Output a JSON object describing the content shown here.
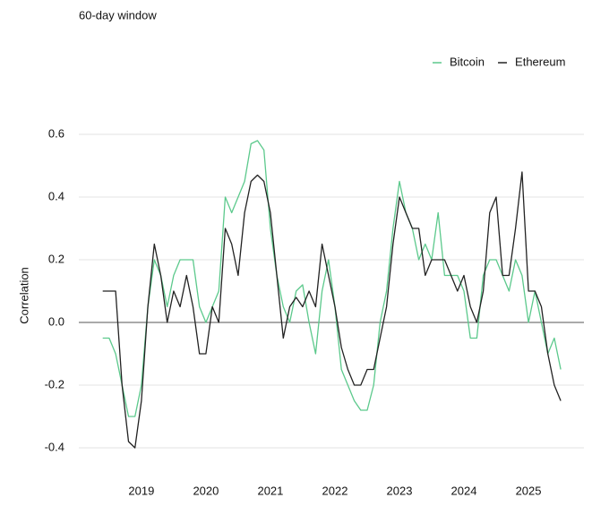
{
  "chart_data": {
    "type": "line",
    "subtitle": "60-day window",
    "y_label": "Correlation",
    "legend": "top-right",
    "grid": true,
    "x": [
      2018.4,
      2018.5,
      2018.6,
      2018.7,
      2018.8,
      2018.9,
      2019.0,
      2019.1,
      2019.2,
      2019.3,
      2019.4,
      2019.5,
      2019.6,
      2019.7,
      2019.8,
      2019.9,
      2020.0,
      2020.1,
      2020.2,
      2020.3,
      2020.4,
      2020.5,
      2020.6,
      2020.7,
      2020.8,
      2020.9,
      2021.0,
      2021.1,
      2021.2,
      2021.3,
      2021.4,
      2021.5,
      2021.6,
      2021.7,
      2021.8,
      2021.9,
      2022.0,
      2022.1,
      2022.2,
      2022.3,
      2022.4,
      2022.5,
      2022.6,
      2022.7,
      2022.8,
      2022.9,
      2023.0,
      2023.1,
      2023.2,
      2023.3,
      2023.4,
      2023.5,
      2023.6,
      2023.7,
      2023.8,
      2023.9,
      2024.0,
      2024.1,
      2024.2,
      2024.3,
      2024.4,
      2024.5,
      2024.6,
      2024.7,
      2024.8,
      2024.9,
      2025.0,
      2025.1,
      2025.2,
      2025.3,
      2025.4,
      2025.5
    ],
    "series": [
      {
        "name": "Bitcoin",
        "color": "#5cc98c",
        "values": [
          -0.05,
          -0.05,
          -0.1,
          -0.2,
          -0.3,
          -0.3,
          -0.2,
          0.05,
          0.2,
          0.15,
          0.05,
          0.15,
          0.2,
          0.2,
          0.2,
          0.05,
          0,
          0.05,
          0.1,
          0.4,
          0.35,
          0.4,
          0.45,
          0.57,
          0.58,
          0.55,
          0.3,
          0.15,
          0.05,
          0,
          0.1,
          0.12,
          0,
          -0.1,
          0.1,
          0.2,
          0.05,
          -0.15,
          -0.2,
          -0.25,
          -0.28,
          -0.28,
          -0.2,
          0,
          0.1,
          0.3,
          0.45,
          0.35,
          0.3,
          0.2,
          0.25,
          0.2,
          0.35,
          0.15,
          0.15,
          0.15,
          0.1,
          -0.05,
          -0.05,
          0.15,
          0.2,
          0.2,
          0.15,
          0.1,
          0.2,
          0.15,
          0,
          0.1,
          0,
          -0.1,
          -0.05,
          -0.15
        ]
      },
      {
        "name": "Ethereum",
        "color": "#222222",
        "values": [
          0.1,
          0.1,
          0.1,
          -0.2,
          -0.38,
          -0.4,
          -0.25,
          0.05,
          0.25,
          0.15,
          0,
          0.1,
          0.05,
          0.15,
          0.05,
          -0.1,
          -0.1,
          0.05,
          0,
          0.3,
          0.25,
          0.15,
          0.35,
          0.45,
          0.47,
          0.45,
          0.35,
          0.15,
          -0.05,
          0.05,
          0.08,
          0.05,
          0.1,
          0.05,
          0.25,
          0.15,
          0.05,
          -0.08,
          -0.15,
          -0.2,
          -0.2,
          -0.15,
          -0.15,
          -0.05,
          0.05,
          0.25,
          0.4,
          0.35,
          0.3,
          0.3,
          0.15,
          0.2,
          0.2,
          0.2,
          0.15,
          0.1,
          0.15,
          0.05,
          0,
          0.1,
          0.35,
          0.4,
          0.15,
          0.15,
          0.3,
          0.48,
          0.1,
          0.1,
          0.05,
          -0.1,
          -0.2,
          -0.25
        ]
      }
    ],
    "xlim": [
      2018.03,
      2025.86
    ],
    "xticks": [
      2019,
      2020,
      2021,
      2022,
      2023,
      2024,
      2025
    ],
    "ylim": [
      -0.43,
      0.65
    ],
    "yticks": [
      -0.4,
      -0.2,
      {
        "value": 0,
        "label": "0.0"
      },
      0.2,
      0.4,
      0.6
    ]
  }
}
